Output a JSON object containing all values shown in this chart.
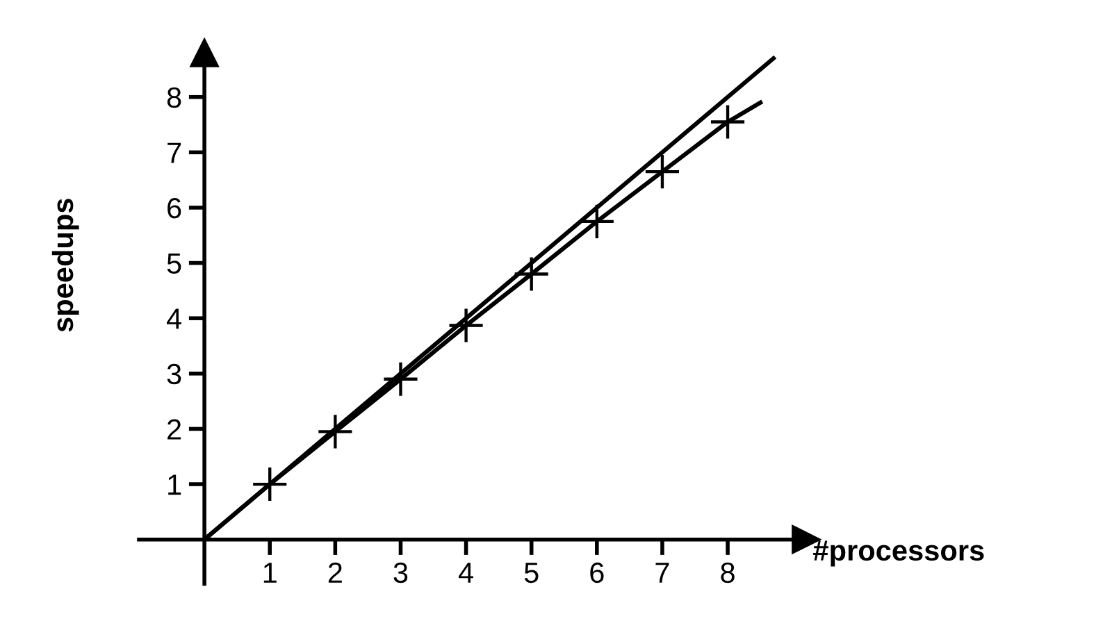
{
  "chart_data": {
    "type": "line",
    "xlabel": "#processors",
    "ylabel": "speedups",
    "xlim": [
      -1.0,
      9.2
    ],
    "ylim": [
      -0.8,
      8.8
    ],
    "xticks": [
      1,
      2,
      3,
      4,
      5,
      6,
      7,
      8
    ],
    "yticks": [
      1,
      2,
      3,
      4,
      5,
      6,
      7,
      8
    ],
    "grid": false,
    "series": [
      {
        "color": "#000000",
        "marker": "none",
        "x": [
          0,
          8.7
        ],
        "values": [
          0,
          8.7
        ]
      },
      {
        "color": "#000000",
        "marker": "none",
        "x": [
          0,
          1,
          2,
          3,
          4,
          5,
          6,
          7,
          8,
          8.5
        ],
        "values": [
          0,
          1.0,
          1.95,
          2.9,
          3.87,
          4.8,
          5.75,
          6.65,
          7.55,
          7.9
        ]
      },
      {
        "type": "scatter",
        "color": "#000000",
        "marker": "cross",
        "x": [
          1,
          2,
          3,
          4,
          5,
          6,
          7,
          8
        ],
        "values": [
          1.0,
          1.95,
          2.9,
          3.87,
          4.8,
          5.75,
          6.65,
          7.55
        ]
      }
    ]
  }
}
